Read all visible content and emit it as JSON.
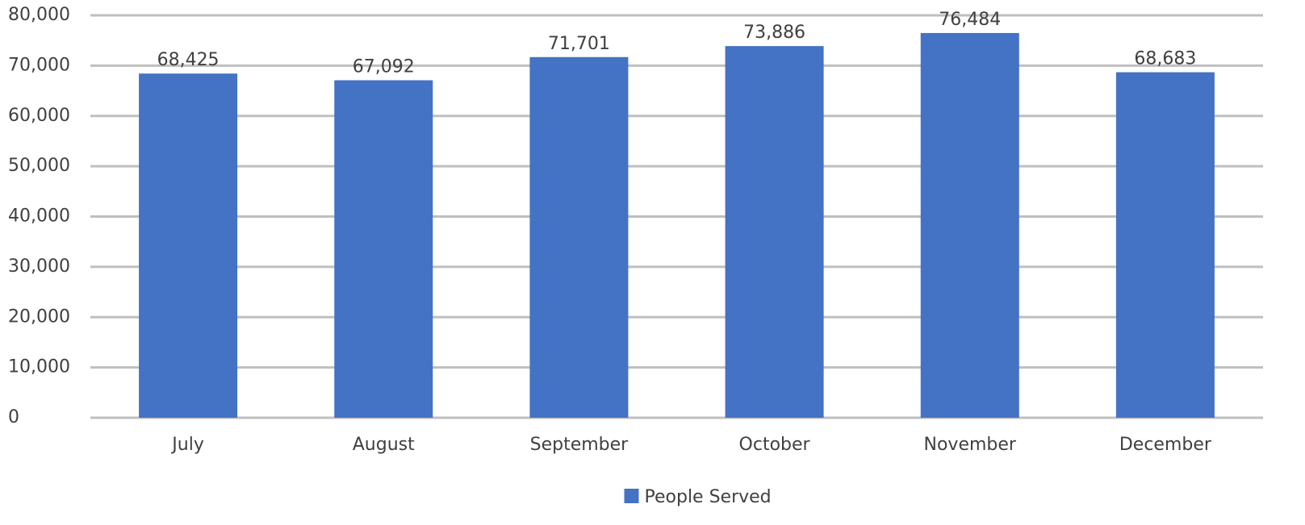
{
  "chart_data": {
    "type": "bar",
    "categories": [
      "July",
      "August",
      "September",
      "October",
      "November",
      "December"
    ],
    "series": [
      {
        "name": "People Served",
        "color": "#4472c4",
        "values": [
          68425,
          67092,
          71701,
          73886,
          76484,
          68683
        ],
        "value_labels": [
          "68,425",
          "67,092",
          "71,701",
          "73,886",
          "76,484",
          "68,683"
        ]
      }
    ],
    "ylim": [
      0,
      80000
    ],
    "yticks": [
      0,
      {
        "value": 10000,
        "label": "10,000"
      },
      {
        "value": 20000,
        "label": "20,000"
      },
      {
        "value": 30000,
        "label": "30,000"
      },
      {
        "value": 40000,
        "label": "40,000"
      },
      {
        "value": 50000,
        "label": "50,000"
      },
      {
        "value": 60000,
        "label": "60,000"
      },
      {
        "value": 70000,
        "label": "70,000"
      },
      {
        "value": 80000,
        "label": "80,000"
      }
    ],
    "grid": true,
    "legend": "bottom"
  }
}
